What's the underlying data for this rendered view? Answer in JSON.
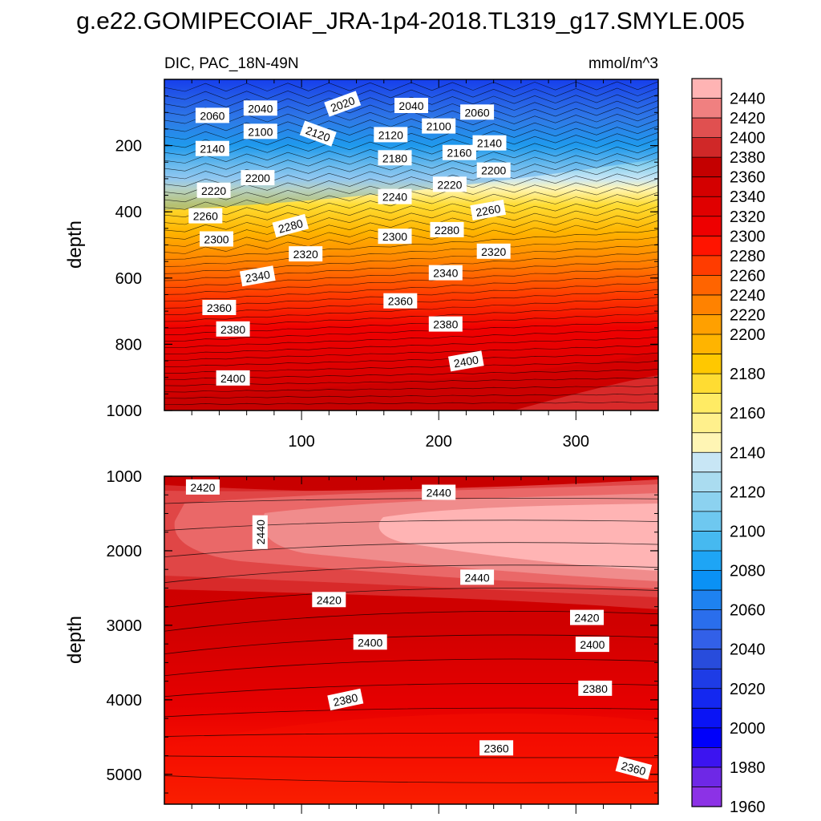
{
  "chart_data": {
    "type": "contour",
    "title": "g.e22.GOMIPECOIAF_JRA-1p4-2018.TL319_g17.SMYLE.005",
    "subtitle_left": "DIC, PAC_18N-49N",
    "subtitle_right": "mmol/m^3",
    "x_ticks": [
      "100",
      "200",
      "300"
    ],
    "xlim": [
      0,
      360
    ],
    "colorbar": {
      "levels": [
        "2440",
        "2420",
        "2400",
        "2380",
        "2360",
        "2340",
        "2320",
        "2300",
        "2280",
        "2260",
        "2240",
        "2220",
        "2200",
        "2180",
        "2160",
        "2140",
        "2120",
        "2100",
        "2080",
        "2060",
        "2040",
        "2020",
        "2000",
        "1980",
        "1960"
      ],
      "colors": [
        "#ffb4b4",
        "#f08080",
        "#e05050",
        "#d02828",
        "#c40000",
        "#d40000",
        "#e00000",
        "#ee0000",
        "#ff1400",
        "#ff3c00",
        "#ff6400",
        "#ff8200",
        "#ffa000",
        "#ffb400",
        "#ffc800",
        "#ffdc32",
        "#ffeb64",
        "#fff08c",
        "#fff5b4",
        "#c8e6f5",
        "#aadcf0",
        "#8cd2f0",
        "#6ec8f0",
        "#46b9f0",
        "#1ea5f5",
        "#0a91f5",
        "#1e82f0",
        "#2a6eec",
        "#3260e8",
        "#284cdc",
        "#1e3ce6",
        "#1428f0",
        "#0a14f5",
        "#0000fa",
        "#3c14f0",
        "#6e28e6",
        "#8c32e6"
      ]
    },
    "panels": [
      {
        "name": "upper",
        "ylabel": "depth",
        "y_ticks": [
          "200",
          "400",
          "600",
          "800",
          "1000"
        ],
        "ylim": [
          0,
          1000
        ],
        "contour_labels": [
          {
            "text": "2020",
            "x": 130,
            "y": 75,
            "rot": -20
          },
          {
            "text": "2040",
            "x": 70,
            "y": 88,
            "rot": 0
          },
          {
            "text": "2040",
            "x": 180,
            "y": 80,
            "rot": 0
          },
          {
            "text": "2060",
            "x": 35,
            "y": 110,
            "rot": 0
          },
          {
            "text": "2060",
            "x": 228,
            "y": 100,
            "rot": 0
          },
          {
            "text": "2100",
            "x": 70,
            "y": 158,
            "rot": 0
          },
          {
            "text": "2120",
            "x": 112,
            "y": 165,
            "rot": 20
          },
          {
            "text": "2120",
            "x": 165,
            "y": 168,
            "rot": 0
          },
          {
            "text": "2100",
            "x": 200,
            "y": 142,
            "rot": 0
          },
          {
            "text": "2140",
            "x": 35,
            "y": 210,
            "rot": 0
          },
          {
            "text": "2140",
            "x": 237,
            "y": 193,
            "rot": 0
          },
          {
            "text": "2160",
            "x": 215,
            "y": 222,
            "rot": 0
          },
          {
            "text": "2180",
            "x": 168,
            "y": 238,
            "rot": 0
          },
          {
            "text": "2200",
            "x": 68,
            "y": 298,
            "rot": 0
          },
          {
            "text": "2200",
            "x": 240,
            "y": 275,
            "rot": 0
          },
          {
            "text": "2220",
            "x": 36,
            "y": 336,
            "rot": 0
          },
          {
            "text": "2220",
            "x": 208,
            "y": 318,
            "rot": 0
          },
          {
            "text": "2240",
            "x": 168,
            "y": 355,
            "rot": 0
          },
          {
            "text": "2260",
            "x": 30,
            "y": 413,
            "rot": 0
          },
          {
            "text": "2260",
            "x": 236,
            "y": 396,
            "rot": -10
          },
          {
            "text": "2280",
            "x": 92,
            "y": 443,
            "rot": -15
          },
          {
            "text": "2280",
            "x": 206,
            "y": 455,
            "rot": 0
          },
          {
            "text": "2300",
            "x": 38,
            "y": 483,
            "rot": 0
          },
          {
            "text": "2300",
            "x": 168,
            "y": 475,
            "rot": 0
          },
          {
            "text": "2320",
            "x": 103,
            "y": 528,
            "rot": 0
          },
          {
            "text": "2320",
            "x": 240,
            "y": 520,
            "rot": 0
          },
          {
            "text": "2340",
            "x": 68,
            "y": 595,
            "rot": -10
          },
          {
            "text": "2340",
            "x": 205,
            "y": 585,
            "rot": 0
          },
          {
            "text": "2360",
            "x": 40,
            "y": 690,
            "rot": 0
          },
          {
            "text": "2360",
            "x": 172,
            "y": 670,
            "rot": 0
          },
          {
            "text": "2380",
            "x": 50,
            "y": 755,
            "rot": 0
          },
          {
            "text": "2380",
            "x": 205,
            "y": 740,
            "rot": 0
          },
          {
            "text": "2400",
            "x": 220,
            "y": 852,
            "rot": -10
          },
          {
            "text": "2400",
            "x": 50,
            "y": 903,
            "rot": 0
          }
        ]
      },
      {
        "name": "lower",
        "ylabel": "depth",
        "y_ticks": [
          "1000",
          "2000",
          "3000",
          "4000",
          "5000"
        ],
        "ylim": [
          1000,
          5400
        ],
        "contour_labels": [
          {
            "text": "2420",
            "x": 28,
            "y": 1150,
            "rot": 0
          },
          {
            "text": "2440",
            "x": 200,
            "y": 1220,
            "rot": 0
          },
          {
            "text": "2440",
            "x": 70,
            "y": 1750,
            "rot": -90
          },
          {
            "text": "2440",
            "x": 228,
            "y": 2360,
            "rot": 0
          },
          {
            "text": "2420",
            "x": 120,
            "y": 2660,
            "rot": 0
          },
          {
            "text": "2420",
            "x": 308,
            "y": 2900,
            "rot": 0
          },
          {
            "text": "2400",
            "x": 150,
            "y": 3230,
            "rot": 0
          },
          {
            "text": "2400",
            "x": 312,
            "y": 3260,
            "rot": 0
          },
          {
            "text": "2380",
            "x": 132,
            "y": 4000,
            "rot": -12
          },
          {
            "text": "2380",
            "x": 314,
            "y": 3850,
            "rot": 0
          },
          {
            "text": "2360",
            "x": 242,
            "y": 4650,
            "rot": 0
          },
          {
            "text": "2360",
            "x": 342,
            "y": 4920,
            "rot": 15
          }
        ]
      }
    ]
  }
}
